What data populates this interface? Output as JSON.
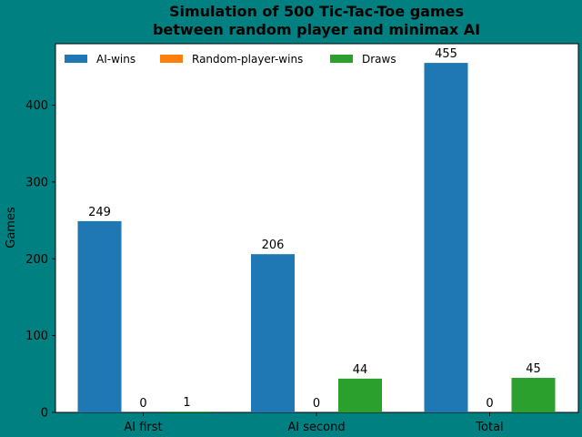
{
  "page": {
    "background_color": "#008080"
  },
  "chart_data": {
    "type": "bar",
    "title_lines": [
      "Simulation of 500 Tic-Tac-Toe games",
      "between random player and minimax AI"
    ],
    "xlabel": "",
    "ylabel": "Games",
    "categories": [
      "AI first",
      "AI second",
      "Total"
    ],
    "series": [
      {
        "name": "AI-wins",
        "color": "#1f77b4",
        "values": [
          249,
          206,
          455
        ]
      },
      {
        "name": "Random-player-wins",
        "color": "#ff7f0e",
        "values": [
          0,
          0,
          0
        ]
      },
      {
        "name": "Draws",
        "color": "#2ca02c",
        "values": [
          1,
          44,
          45
        ]
      }
    ],
    "ylim": [
      0,
      480
    ],
    "yticks": [
      0,
      100,
      200,
      300,
      400
    ],
    "grid": false,
    "legend_placement": "top",
    "plot_background": "#ffffff"
  }
}
